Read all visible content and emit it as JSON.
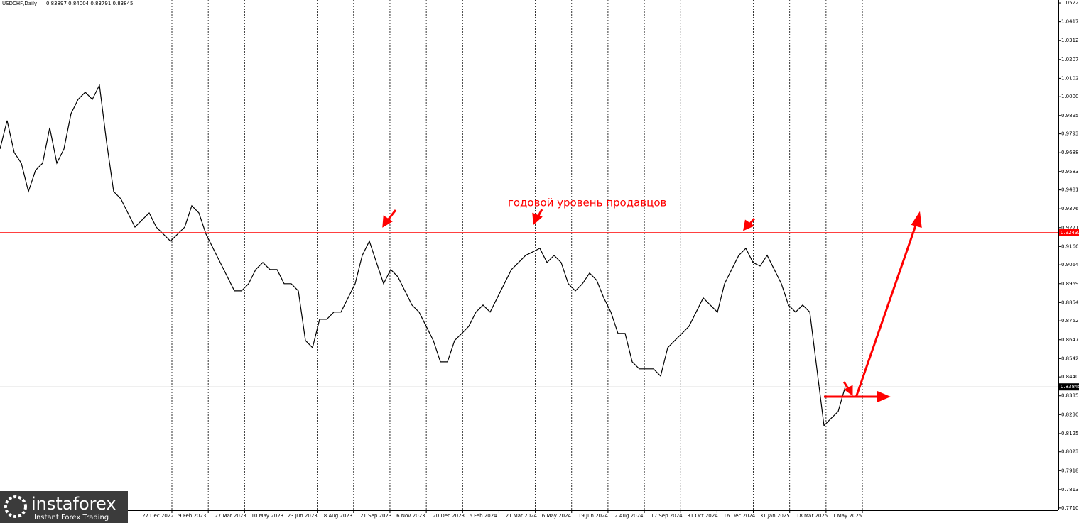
{
  "chart_data": {
    "type": "line",
    "title": "USDCHF,Daily",
    "subtitle": "0.83897 0.84004 0.83791 0.83845",
    "annotation": "годовой уровень продавцов",
    "level": 0.92433,
    "current_price": 0.83845,
    "color": "#000000",
    "level_color": "#ff0000",
    "ylim": [
      0.7702,
      1.0538
    ],
    "yticks": [
      {
        "value": 1.0522,
        "label": "1.05220"
      },
      {
        "value": 1.0417,
        "label": "1.04170"
      },
      {
        "value": 1.0312,
        "label": "1.03120"
      },
      {
        "value": 1.0207,
        "label": "1.02070"
      },
      {
        "value": 1.0102,
        "label": "1.01020"
      },
      {
        "value": 1.0,
        "label": "1.00000"
      },
      {
        "value": 0.9895,
        "label": "0.98950"
      },
      {
        "value": 0.9793,
        "label": "0.97930"
      },
      {
        "value": 0.9688,
        "label": "0.96880"
      },
      {
        "value": 0.9583,
        "label": "0.95830"
      },
      {
        "value": 0.9481,
        "label": "0.94810"
      },
      {
        "value": 0.9376,
        "label": "0.93760"
      },
      {
        "value": 0.9271,
        "label": "0.92710"
      },
      {
        "value": 0.9166,
        "label": "0.91660"
      },
      {
        "value": 0.9064,
        "label": "0.90640"
      },
      {
        "value": 0.8959,
        "label": "0.89590"
      },
      {
        "value": 0.8854,
        "label": "0.88540"
      },
      {
        "value": 0.8752,
        "label": "0.87520"
      },
      {
        "value": 0.8647,
        "label": "0.86470"
      },
      {
        "value": 0.8542,
        "label": "0.85420"
      },
      {
        "value": 0.844,
        "label": "0.84400"
      },
      {
        "value": 0.8335,
        "label": "0.83350"
      },
      {
        "value": 0.823,
        "label": "0.82300"
      },
      {
        "value": 0.8125,
        "label": "0.81250"
      },
      {
        "value": 0.8023,
        "label": "0.80230"
      },
      {
        "value": 0.7918,
        "label": "0.79180"
      },
      {
        "value": 0.7813,
        "label": "0.78130"
      },
      0.77105
    ],
    "xticks": [
      "27 Dec 2022",
      "9 Feb 2023",
      "27 Mar 2023",
      "10 May 2023",
      "23 Jun 2023",
      "8 Aug 2023",
      "21 Sep 2023",
      "6 Nov 2023",
      "20 Dec 2023",
      "6 Feb 2024",
      "21 Mar 2024",
      "6 May 2024",
      "19 Jun 2024",
      "2 Aug 2024",
      "17 Sep 2024",
      "31 Oct 2024",
      "16 Dec 2024",
      "31 Jan 2025",
      "18 Mar 2025",
      "1 May 2025"
    ],
    "values": [
      0.9709,
      0.9867,
      0.9689,
      0.963,
      0.9472,
      0.959,
      0.963,
      0.9827,
      0.963,
      0.9709,
      0.9906,
      0.9985,
      1.0025,
      0.9985,
      1.0064,
      0.9748,
      0.9472,
      0.9432,
      0.9353,
      0.9274,
      0.9314,
      0.9353,
      0.9274,
      0.9235,
      0.9196,
      0.9235,
      0.9274,
      0.9393,
      0.9353,
      0.9235,
      0.9156,
      0.9077,
      0.8998,
      0.8919,
      0.8919,
      0.8959,
      0.9038,
      0.9077,
      0.9038,
      0.9038,
      0.8959,
      0.8959,
      0.8919,
      0.8643,
      0.8603,
      0.8761,
      0.8761,
      0.8801,
      0.8801,
      0.888,
      0.8959,
      0.9117,
      0.9196,
      0.9077,
      0.8959,
      0.9038,
      0.8998,
      0.8919,
      0.884,
      0.8801,
      0.8722,
      0.8643,
      0.8524,
      0.8524,
      0.8643,
      0.8682,
      0.8722,
      0.8801,
      0.884,
      0.8801,
      0.888,
      0.8959,
      0.9038,
      0.9077,
      0.9117,
      0.9136,
      0.9156,
      0.9077,
      0.9117,
      0.9077,
      0.8959,
      0.8919,
      0.8959,
      0.9018,
      0.8978,
      0.888,
      0.8801,
      0.8682,
      0.8682,
      0.8524,
      0.8485,
      0.8485,
      0.8485,
      0.8445,
      0.8603,
      0.8643,
      0.8682,
      0.8722,
      0.8801,
      0.888,
      0.884,
      0.8801,
      0.8959,
      0.9038,
      0.9117,
      0.9156,
      0.9077,
      0.9057,
      0.9117,
      0.9038,
      0.8959,
      0.884,
      0.8801,
      0.884,
      0.8801,
      0.8485,
      0.8169,
      0.8209,
      0.8248,
      0.8386
    ]
  },
  "watermark": {
    "brand": "instaforex",
    "tagline": "Instant Forex Trading"
  }
}
